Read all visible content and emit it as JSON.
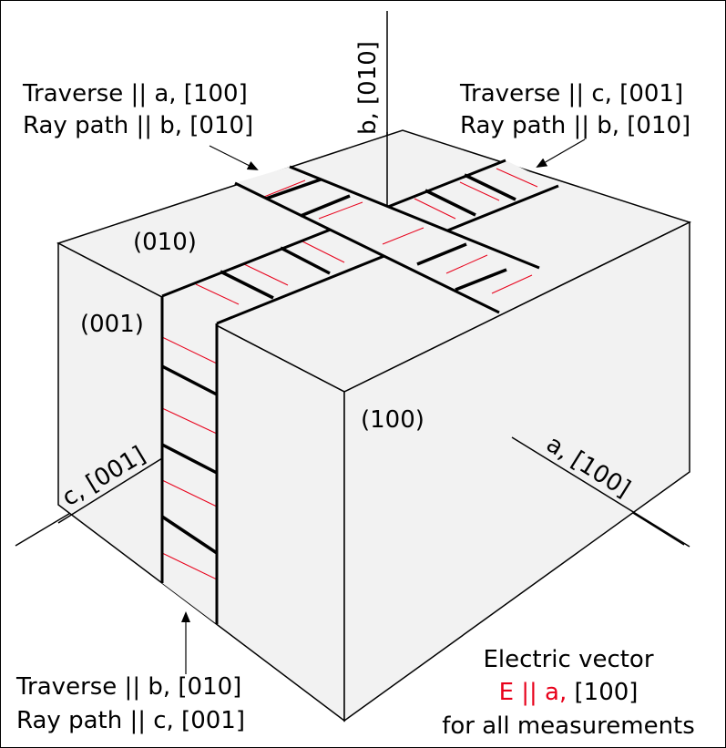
{
  "axes": {
    "b": "b, [010]",
    "c": "c, [001]",
    "a": "a, [100]"
  },
  "faces": {
    "top": "(010)",
    "left": "(001)",
    "front": "(100)"
  },
  "annotations": {
    "top_left": {
      "line1": "Traverse || a, [100]",
      "line2": "Ray path || b, [010]"
    },
    "top_right": {
      "line1": "Traverse || c, [001]",
      "line2": "Ray path || b, [010]"
    },
    "bottom_left": {
      "line1": "Traverse || b, [010]",
      "line2": "Ray path || c, [001]"
    }
  },
  "electric_vector": {
    "line1": "Electric vector",
    "line2_red": "E || a,",
    "line2_black": " [100]",
    "line3": "for all measurements"
  },
  "colors": {
    "face_fill": "#f2f2f2",
    "stroke": "#000000",
    "ray_path": "#e8001a",
    "emphasis": "#e8001a"
  }
}
